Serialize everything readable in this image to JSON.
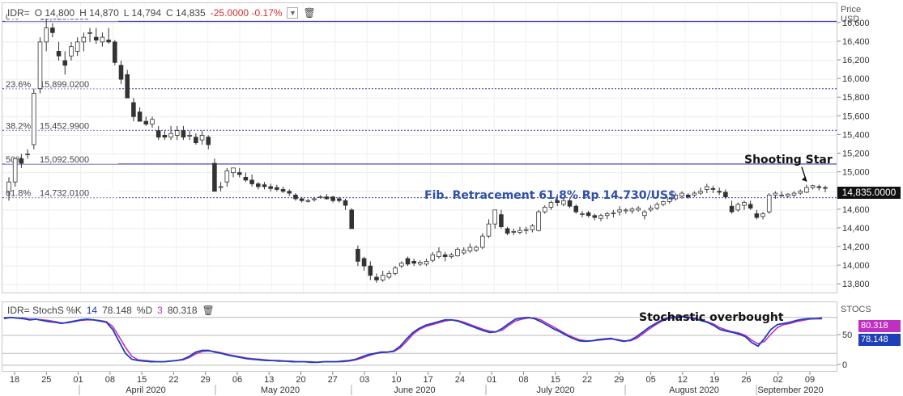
{
  "header": {
    "symbol": "IDR=",
    "open": "O 14,800",
    "high": "H 14,870",
    "low": "L 14,794",
    "close": "C 14,835",
    "change": "-25.0000 -0.17%",
    "dropdown_icon": "chevron-down-icon",
    "trash_icon": "trash-icon"
  },
  "price_axis": {
    "caption_line1": "Price",
    "caption_line2": "USD",
    "current_badge": "14,835.0000"
  },
  "fib_levels": [
    {
      "pct": "0%",
      "value": "16,620.0000",
      "price": 16620
    },
    {
      "pct": "23.6%",
      "value": "15,899.0200",
      "price": 15899.02
    },
    {
      "pct": "38.2%",
      "value": "15,452.9900",
      "price": 15452.99
    },
    {
      "pct": "50%",
      "value": "15,092.5000",
      "price": 15092.5
    },
    {
      "pct": "61.8%",
      "value": "14,732.0100",
      "price": 14732.01
    }
  ],
  "annotations": {
    "fib_note": "Fib. Retracement 61,8%  Rp 14.730/US$",
    "shooting_star": "Shooting Star",
    "stoch_note": "Stochastic overbought"
  },
  "stoch_header": {
    "label": "IDR= StochS %K",
    "k_period": "14",
    "k_value": "78.148",
    "d_label": "%D",
    "d_period": "3",
    "d_value": "80.318",
    "trash_icon": "trash-icon"
  },
  "stoch_axis": {
    "caption": "STOCS",
    "ticks": [
      "50",
      "0"
    ],
    "k_badge": "78.148",
    "d_badge": "80.318"
  },
  "colors": {
    "k_line": "#1d3fb8",
    "d_line": "#c030c0",
    "fib_solid": "#3a3aa8",
    "fib_dotted": "#3a3aa8",
    "up": "#ffffff",
    "down": "#333333"
  },
  "chart_data": {
    "type": "candlestick",
    "title": "",
    "ylabel": "Price USD",
    "ylim": [
      13750,
      16780
    ],
    "y_ticks": [
      13800,
      14000,
      14200,
      14400,
      14600,
      14800,
      15000,
      15200,
      15400,
      15600,
      15800,
      16000,
      16200,
      16400,
      16600
    ],
    "x_day_labels": [
      "18",
      "25",
      "01",
      "08",
      "15",
      "22",
      "29",
      "06",
      "13",
      "20",
      "27",
      "03",
      "10",
      "17",
      "24",
      "01",
      "08",
      "15",
      "22",
      "29",
      "05",
      "12",
      "19",
      "26",
      "02",
      "09"
    ],
    "x_month_labels": [
      "April 2020",
      "May 2020",
      "June 2020",
      "July 2020",
      "August 2020",
      "September 2020"
    ],
    "candles": [
      [
        14800,
        14950,
        14700,
        14900
      ],
      [
        14900,
        15150,
        14850,
        15150
      ],
      [
        15150,
        15200,
        15050,
        15100
      ],
      [
        15200,
        15250,
        15150,
        15200
      ],
      [
        15300,
        15900,
        15250,
        15850
      ],
      [
        15900,
        16450,
        15850,
        16400
      ],
      [
        16400,
        16650,
        16300,
        16550
      ],
      [
        16550,
        16600,
        16450,
        16500
      ],
      [
        16300,
        16400,
        16200,
        16250
      ],
      [
        16200,
        16300,
        16050,
        16150
      ],
      [
        16250,
        16400,
        16200,
        16350
      ],
      [
        16300,
        16450,
        16250,
        16400
      ],
      [
        16400,
        16500,
        16300,
        16450
      ],
      [
        16500,
        16550,
        16400,
        16500
      ],
      [
        16450,
        16550,
        16380,
        16420
      ],
      [
        16400,
        16500,
        16350,
        16450
      ],
      [
        16420,
        16550,
        16380,
        16400
      ],
      [
        16400,
        16420,
        16150,
        16180
      ],
      [
        16150,
        16200,
        15950,
        16000
      ],
      [
        16050,
        16100,
        15800,
        15800
      ],
      [
        15750,
        15800,
        15550,
        15600
      ],
      [
        15650,
        15700,
        15550,
        15550
      ],
      [
        15550,
        15600,
        15500,
        15520
      ],
      [
        15520,
        15600,
        15480,
        15570
      ],
      [
        15450,
        15500,
        15350,
        15380
      ],
      [
        15400,
        15450,
        15350,
        15380
      ],
      [
        15380,
        15500,
        15350,
        15420
      ],
      [
        15400,
        15500,
        15350,
        15450
      ],
      [
        15450,
        15500,
        15350,
        15380
      ],
      [
        15400,
        15450,
        15350,
        15400
      ],
      [
        15380,
        15420,
        15300,
        15320
      ],
      [
        15350,
        15450,
        15300,
        15400
      ],
      [
        15380,
        15400,
        15250,
        15300
      ],
      [
        15100,
        15150,
        14800,
        14800
      ],
      [
        14850,
        14900,
        14800,
        14850
      ],
      [
        14900,
        15050,
        14850,
        15020
      ],
      [
        15000,
        15050,
        14950,
        15050
      ],
      [
        15000,
        15050,
        14950,
        14980
      ],
      [
        14950,
        15000,
        14900,
        14920
      ],
      [
        14920,
        14980,
        14850,
        14880
      ],
      [
        14880,
        14900,
        14820,
        14850
      ],
      [
        14870,
        14900,
        14820,
        14850
      ],
      [
        14850,
        14880,
        14800,
        14830
      ],
      [
        14840,
        14870,
        14800,
        14820
      ],
      [
        14820,
        14850,
        14780,
        14800
      ],
      [
        14800,
        14820,
        14750,
        14780
      ],
      [
        14760,
        14780,
        14700,
        14720
      ],
      [
        14720,
        14740,
        14680,
        14700
      ],
      [
        14700,
        14720,
        14680,
        14700
      ],
      [
        14710,
        14740,
        14690,
        14720
      ],
      [
        14740,
        14760,
        14720,
        14740
      ],
      [
        14740,
        14770,
        14710,
        14720
      ],
      [
        14740,
        14750,
        14680,
        14700
      ],
      [
        14720,
        14740,
        14680,
        14700
      ],
      [
        14700,
        14720,
        14600,
        14650
      ],
      [
        14600,
        14620,
        14400,
        14400
      ],
      [
        14180,
        14220,
        14000,
        14050
      ],
      [
        14080,
        14100,
        13950,
        14000
      ],
      [
        14000,
        14050,
        13850,
        13900
      ],
      [
        13880,
        13920,
        13820,
        13850
      ],
      [
        13850,
        13950,
        13830,
        13900
      ],
      [
        13880,
        13950,
        13860,
        13920
      ],
      [
        13920,
        14000,
        13900,
        13980
      ],
      [
        14000,
        14050,
        13980,
        14030
      ],
      [
        14080,
        14100,
        14000,
        14020
      ],
      [
        14050,
        14080,
        14000,
        14030
      ],
      [
        14020,
        14060,
        14000,
        14040
      ],
      [
        14020,
        14080,
        14000,
        14050
      ],
      [
        14060,
        14150,
        14040,
        14120
      ],
      [
        14100,
        14200,
        14080,
        14150
      ],
      [
        14120,
        14150,
        14050,
        14100
      ],
      [
        14100,
        14140,
        14080,
        14120
      ],
      [
        14110,
        14200,
        14100,
        14180
      ],
      [
        14140,
        14200,
        14120,
        14170
      ],
      [
        14160,
        14240,
        14140,
        14200
      ],
      [
        14170,
        14220,
        14150,
        14200
      ],
      [
        14200,
        14350,
        14180,
        14320
      ],
      [
        14320,
        14500,
        14300,
        14450
      ],
      [
        14450,
        14600,
        14400,
        14600
      ],
      [
        14550,
        14600,
        14400,
        14420
      ],
      [
        14400,
        14420,
        14330,
        14350
      ],
      [
        14370,
        14400,
        14330,
        14370
      ],
      [
        14360,
        14420,
        14340,
        14380
      ],
      [
        14380,
        14420,
        14340,
        14390
      ],
      [
        14390,
        14450,
        14360,
        14430
      ],
      [
        14380,
        14600,
        14370,
        14580
      ],
      [
        14580,
        14650,
        14560,
        14630
      ],
      [
        14630,
        14700,
        14600,
        14680
      ],
      [
        14700,
        14770,
        14640,
        14680
      ],
      [
        14660,
        14720,
        14640,
        14700
      ],
      [
        14700,
        14720,
        14620,
        14640
      ],
      [
        14640,
        14660,
        14560,
        14580
      ],
      [
        14560,
        14590,
        14520,
        14560
      ],
      [
        14570,
        14590,
        14520,
        14540
      ],
      [
        14540,
        14560,
        14490,
        14520
      ],
      [
        14510,
        14560,
        14480,
        14540
      ],
      [
        14540,
        14580,
        14500,
        14560
      ],
      [
        14560,
        14600,
        14520,
        14570
      ],
      [
        14580,
        14640,
        14540,
        14600
      ],
      [
        14590,
        14620,
        14560,
        14600
      ],
      [
        14590,
        14630,
        14560,
        14610
      ],
      [
        14600,
        14640,
        14580,
        14620
      ],
      [
        14540,
        14600,
        14500,
        14580
      ],
      [
        14600,
        14650,
        14580,
        14620
      ],
      [
        14620,
        14680,
        14600,
        14660
      ],
      [
        14660,
        14700,
        14640,
        14690
      ],
      [
        14690,
        14740,
        14670,
        14720
      ],
      [
        14720,
        14780,
        14700,
        14760
      ],
      [
        14750,
        14800,
        14720,
        14780
      ],
      [
        14760,
        14780,
        14720,
        14740
      ],
      [
        14760,
        14800,
        14740,
        14780
      ],
      [
        14780,
        14840,
        14760,
        14800
      ],
      [
        14820,
        14880,
        14780,
        14850
      ],
      [
        14830,
        14860,
        14780,
        14820
      ],
      [
        14800,
        14840,
        14760,
        14790
      ],
      [
        14790,
        14820,
        14720,
        14740
      ],
      [
        14640,
        14700,
        14560,
        14580
      ],
      [
        14600,
        14680,
        14580,
        14660
      ],
      [
        14650,
        14700,
        14600,
        14680
      ],
      [
        14660,
        14700,
        14600,
        14620
      ],
      [
        14560,
        14600,
        14500,
        14520
      ],
      [
        14530,
        14580,
        14500,
        14560
      ],
      [
        14580,
        14780,
        14560,
        14760
      ],
      [
        14760,
        14800,
        14720,
        14780
      ],
      [
        14760,
        14800,
        14740,
        14760
      ],
      [
        14750,
        14780,
        14730,
        14770
      ],
      [
        14760,
        14800,
        14740,
        14780
      ],
      [
        14780,
        14820,
        14760,
        14800
      ],
      [
        14790,
        14870,
        14780,
        14840
      ],
      [
        14840,
        14870,
        14820,
        14860
      ],
      [
        14850,
        14870,
        14810,
        14840
      ],
      [
        14840,
        14860,
        14790,
        14835
      ]
    ],
    "stoch_k": [
      78,
      80,
      79,
      78,
      76,
      77,
      75,
      73,
      72,
      70,
      72,
      74,
      76,
      77,
      76,
      74,
      72,
      60,
      40,
      20,
      10,
      8,
      7,
      6,
      6,
      6,
      7,
      8,
      10,
      15,
      22,
      25,
      25,
      22,
      20,
      17,
      15,
      13,
      11,
      10,
      9,
      8,
      8,
      7,
      7,
      6,
      6,
      6,
      5,
      5,
      6,
      6,
      6,
      7,
      8,
      10,
      14,
      18,
      20,
      22,
      22,
      24,
      32,
      44,
      55,
      62,
      67,
      70,
      73,
      76,
      76,
      74,
      70,
      66,
      62,
      58,
      55,
      56,
      62,
      70,
      77,
      79,
      80,
      78,
      73,
      67,
      61,
      56,
      50,
      45,
      41,
      40,
      41,
      43,
      44,
      45,
      42,
      40,
      42,
      48,
      56,
      64,
      70,
      76,
      80,
      81,
      82,
      80,
      78,
      75,
      72,
      67,
      60,
      57,
      55,
      52,
      48,
      38,
      32,
      45,
      60,
      68,
      70,
      72,
      75,
      77,
      78,
      78,
      78
    ],
    "stoch_d": [
      80,
      80,
      79,
      79,
      77,
      77,
      76,
      75,
      73,
      71,
      71,
      73,
      75,
      76,
      76,
      75,
      73,
      65,
      48,
      30,
      15,
      9,
      8,
      7,
      6,
      6,
      7,
      8,
      9,
      13,
      19,
      23,
      24,
      23,
      21,
      18,
      16,
      14,
      12,
      11,
      10,
      9,
      8,
      8,
      7,
      7,
      6,
      6,
      6,
      5,
      6,
      6,
      6,
      6,
      7,
      9,
      12,
      16,
      19,
      21,
      22,
      23,
      29,
      40,
      52,
      60,
      65,
      68,
      71,
      74,
      76,
      75,
      72,
      68,
      64,
      60,
      57,
      56,
      59,
      67,
      74,
      77,
      79,
      79,
      76,
      70,
      64,
      58,
      52,
      47,
      43,
      41,
      41,
      42,
      43,
      44,
      43,
      41,
      41,
      45,
      53,
      61,
      68,
      74,
      78,
      80,
      81,
      81,
      79,
      76,
      73,
      69,
      63,
      59,
      56,
      54,
      50,
      42,
      36,
      40,
      52,
      63,
      68,
      70,
      73,
      75,
      77,
      78,
      80
    ]
  }
}
